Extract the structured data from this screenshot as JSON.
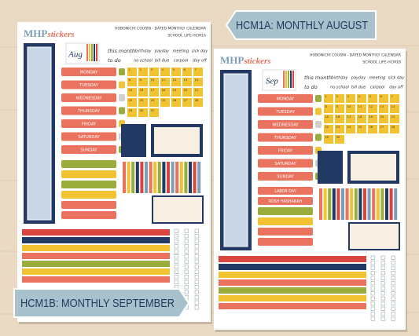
{
  "banners": {
    "top": "HCM1A: MONTHLY AUGUST",
    "bottom": "HCM1B: MONTHLY SEPTEMBER"
  },
  "sheets": [
    {
      "brand": "MHP",
      "brand_sub": "stickers",
      "header": "HOBONICHI COUSIN - DATED MONTHLY CALENDAR",
      "code": "SCHOOL LIFE-HCM1A",
      "month": "Aug",
      "focus": [
        "this month",
        "to do"
      ],
      "labels": [
        "birthday",
        "payday",
        "meeting",
        "sick day",
        "no school",
        "bill due",
        "carpool",
        "day off"
      ],
      "days": [
        "MONDAY",
        "TUESDAY",
        "WEDNESDAY",
        "THURSDAY",
        "FRIDAY",
        "SATURDAY",
        "SUNDAY"
      ],
      "dates": [
        "1",
        "2",
        "3",
        "4",
        "5",
        "6",
        "7",
        "8",
        "9",
        "10",
        "11",
        "12",
        "13",
        "14",
        "15",
        "16",
        "17",
        "18",
        "19",
        "20",
        "21",
        "22",
        "23",
        "24",
        "25",
        "26",
        "27",
        "28",
        "29",
        "30",
        "31"
      ],
      "holidays": []
    },
    {
      "brand": "MHP",
      "brand_sub": "stickers",
      "header": "HOBONICHI COUSIN - DATED MONTHLY CALENDAR",
      "code": "SCHOOL LIFE-HCM1B",
      "month": "Sep",
      "focus": [
        "this month",
        "to do"
      ],
      "labels": [
        "birthday",
        "payday",
        "meeting",
        "sick day",
        "no school",
        "bill due",
        "carpool",
        "day off"
      ],
      "days": [
        "MONDAY",
        "TUESDAY",
        "WEDNESDAY",
        "THURSDAY",
        "FRIDAY",
        "SATURDAY",
        "SUNDAY"
      ],
      "dates": [
        "1",
        "2",
        "3",
        "4",
        "5",
        "6",
        "7",
        "8",
        "9",
        "10",
        "11",
        "12",
        "13",
        "14",
        "15",
        "16",
        "17",
        "18",
        "19",
        "20",
        "21",
        "22",
        "23",
        "24",
        "25",
        "26",
        "27",
        "28",
        "29",
        "30"
      ],
      "holidays": [
        "LABOR DAY",
        "ROSH HASHANAH"
      ]
    }
  ]
}
